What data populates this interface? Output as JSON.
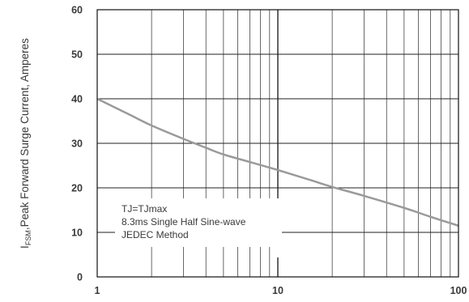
{
  "chart_data": {
    "type": "line",
    "title": "",
    "xlabel": "",
    "ylabel": {
      "prefix": "I",
      "subscript": "FSM",
      "rest": ",Peak Forward Surge Current, Amperes"
    },
    "x_scale": "log",
    "xlim": [
      1,
      100
    ],
    "ylim": [
      0,
      60
    ],
    "x_ticks": [
      {
        "value": 1,
        "label": "1"
      },
      {
        "value": 10,
        "label": "10"
      },
      {
        "value": 100,
        "label": "100"
      }
    ],
    "y_ticks": [
      {
        "value": 0,
        "label": "0"
      },
      {
        "value": 10,
        "label": "10"
      },
      {
        "value": 20,
        "label": "20"
      },
      {
        "value": 30,
        "label": "30"
      },
      {
        "value": 40,
        "label": "40"
      },
      {
        "value": 50,
        "label": "50"
      },
      {
        "value": 60,
        "label": "60"
      }
    ],
    "grid": true,
    "annotation_lines": [
      "TJ=TJmax",
      "8.3ms Single Half Sine-wave",
      "JEDEC Method"
    ],
    "series": [
      {
        "color": "#9a9a9a",
        "points": [
          {
            "x": 1,
            "y": 40
          },
          {
            "x": 1.5,
            "y": 36.5
          },
          {
            "x": 2,
            "y": 34
          },
          {
            "x": 3,
            "y": 31
          },
          {
            "x": 4,
            "y": 29
          },
          {
            "x": 5,
            "y": 27.5
          },
          {
            "x": 7,
            "y": 25.8
          },
          {
            "x": 10,
            "y": 24
          },
          {
            "x": 15,
            "y": 21.8
          },
          {
            "x": 20,
            "y": 20.2
          },
          {
            "x": 30,
            "y": 18.2
          },
          {
            "x": 50,
            "y": 15.5
          },
          {
            "x": 70,
            "y": 13.5
          },
          {
            "x": 100,
            "y": 11.5
          }
        ]
      }
    ]
  }
}
